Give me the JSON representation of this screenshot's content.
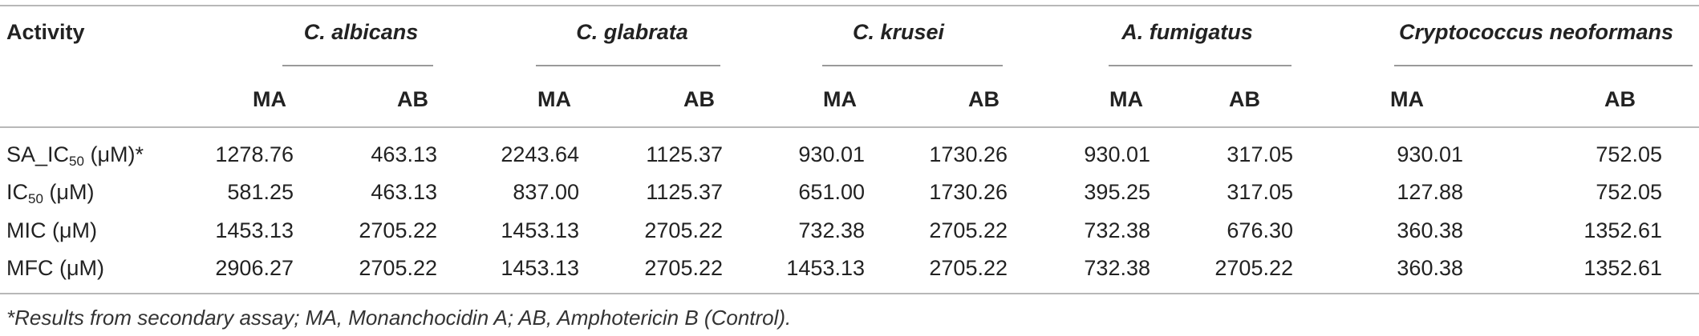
{
  "table": {
    "activity_header": "Activity",
    "organisms": [
      "C. albicans",
      "C. glabrata",
      "C. krusei",
      "A. fumigatus",
      "Cryptococcus neoformans"
    ],
    "subheaders": [
      "MA",
      "AB"
    ],
    "rows": [
      {
        "label_pre": "SA_IC",
        "label_sub": "50",
        "label_post": " (μM)*",
        "values": [
          "1278.76",
          "463.13",
          "2243.64",
          "1125.37",
          "930.01",
          "1730.26",
          "930.01",
          "317.05",
          "930.01",
          "752.05"
        ]
      },
      {
        "label_pre": "IC",
        "label_sub": "50",
        "label_post": " (μM)",
        "values": [
          "581.25",
          "463.13",
          "837.00",
          "1125.37",
          "651.00",
          "1730.26",
          "395.25",
          "317.05",
          "127.88",
          "752.05"
        ]
      },
      {
        "label_pre": "MIC (μM)",
        "label_sub": "",
        "label_post": "",
        "values": [
          "1453.13",
          "2705.22",
          "1453.13",
          "2705.22",
          "732.38",
          "2705.22",
          "732.38",
          "676.30",
          "360.38",
          "1352.61"
        ]
      },
      {
        "label_pre": "MFC (μM)",
        "label_sub": "",
        "label_post": "",
        "values": [
          "2906.27",
          "2705.22",
          "1453.13",
          "2705.22",
          "1453.13",
          "2705.22",
          "732.38",
          "2705.22",
          "360.38",
          "1352.61"
        ]
      }
    ],
    "footnote": "*Results from secondary assay; MA, Monanchocidin A; AB, Amphotericin B (Control)."
  }
}
